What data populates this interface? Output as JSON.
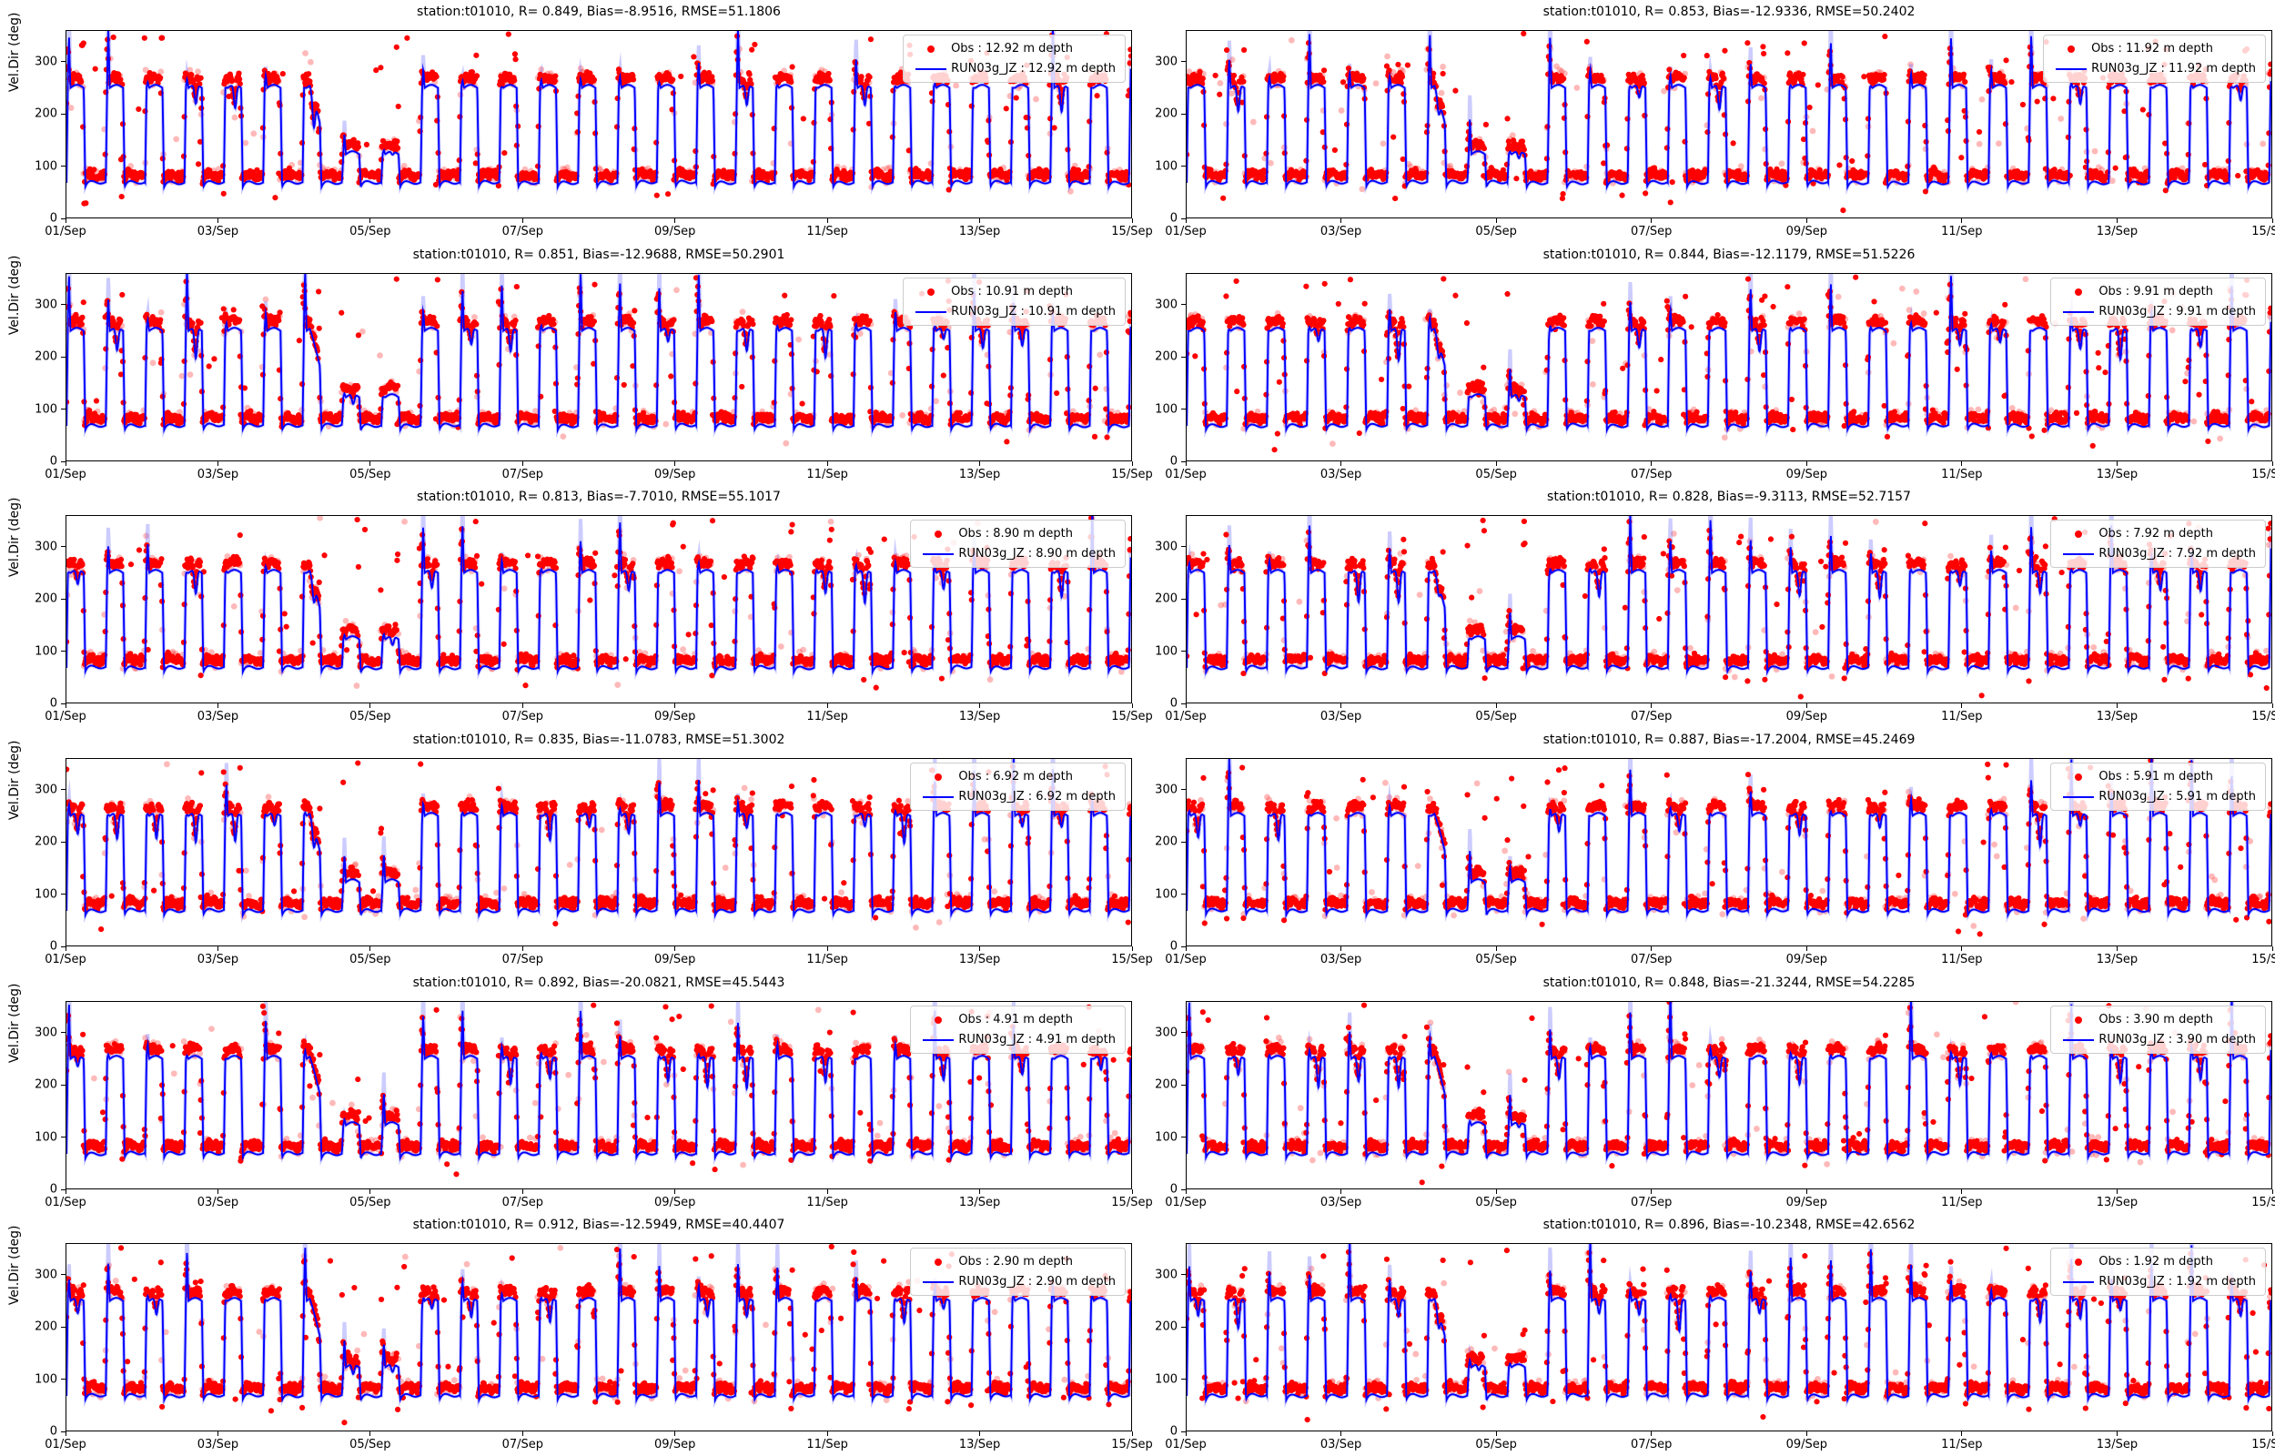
{
  "figure": {
    "station": "t01010",
    "ylabel": "Vel.Dir (deg)",
    "x_ticks": [
      "01/Sep",
      "03/Sep",
      "05/Sep",
      "07/Sep",
      "09/Sep",
      "11/Sep",
      "13/Sep",
      "15/Sep"
    ],
    "y_ticks": [
      "0",
      "100",
      "200",
      "300"
    ],
    "ylim": [
      0,
      360
    ],
    "x_range_days": 14,
    "grid": "off",
    "legend_position": "upper right",
    "colors": {
      "obs": "#ff0000",
      "model": "#0000ff",
      "model_halo": "rgba(110,110,255,0.35)",
      "spine": "#000000",
      "legend_border": "#cccccc"
    }
  },
  "chart_data": [
    {
      "type": "scatter+line",
      "title": "station:t01010, R= 0.849, Bias=-8.9516, RMSE=51.1806",
      "R": 0.849,
      "Bias": -8.9516,
      "RMSE": 51.1806,
      "depth_m": 12.92,
      "legend": {
        "obs": "Obs : 12.92 m depth",
        "model": "RUN03g_JZ : 12.92 m depth"
      },
      "series": [
        {
          "name": "Obs",
          "style": "red dots"
        },
        {
          "name": "RUN03g_JZ",
          "style": "blue line"
        }
      ],
      "pattern": {
        "kind": "semidiurnal square wave",
        "period_hours": 12.42,
        "model_low_deg": 67,
        "model_high_deg": 250,
        "obs_low_deg": 82,
        "obs_high_deg": 265,
        "spike_max_deg": 360,
        "weak_window_days": [
          3.2,
          4.7
        ],
        "x_start": "01/Sep",
        "x_end": "15/Sep"
      }
    },
    {
      "type": "scatter+line",
      "title": "station:t01010, R= 0.853, Bias=-12.9336, RMSE=50.2402",
      "R": 0.853,
      "Bias": -12.9336,
      "RMSE": 50.2402,
      "depth_m": 11.92,
      "legend": {
        "obs": "Obs : 11.92 m depth",
        "model": "RUN03g_JZ : 11.92 m depth"
      },
      "series": [
        {
          "name": "Obs",
          "style": "red dots"
        },
        {
          "name": "RUN03g_JZ",
          "style": "blue line"
        }
      ],
      "pattern": {
        "kind": "semidiurnal square wave",
        "period_hours": 12.42,
        "model_low_deg": 67,
        "model_high_deg": 250,
        "obs_low_deg": 82,
        "obs_high_deg": 265,
        "spike_max_deg": 360,
        "weak_window_days": [
          3.2,
          4.7
        ],
        "x_start": "01/Sep",
        "x_end": "15/Sep"
      }
    },
    {
      "type": "scatter+line",
      "title": "station:t01010, R= 0.851, Bias=-12.9688, RMSE=50.2901",
      "R": 0.851,
      "Bias": -12.9688,
      "RMSE": 50.2901,
      "depth_m": 10.91,
      "legend": {
        "obs": "Obs : 10.91 m depth",
        "model": "RUN03g_JZ : 10.91 m depth"
      },
      "series": [
        {
          "name": "Obs",
          "style": "red dots"
        },
        {
          "name": "RUN03g_JZ",
          "style": "blue line"
        }
      ],
      "pattern": {
        "kind": "semidiurnal square wave",
        "period_hours": 12.42,
        "model_low_deg": 67,
        "model_high_deg": 250,
        "obs_low_deg": 82,
        "obs_high_deg": 265,
        "spike_max_deg": 360,
        "weak_window_days": [
          3.2,
          4.7
        ],
        "x_start": "01/Sep",
        "x_end": "15/Sep"
      }
    },
    {
      "type": "scatter+line",
      "title": "station:t01010, R= 0.844, Bias=-12.1179, RMSE=51.5226",
      "R": 0.844,
      "Bias": -12.1179,
      "RMSE": 51.5226,
      "depth_m": 9.91,
      "legend": {
        "obs": "Obs : 9.91 m depth",
        "model": "RUN03g_JZ : 9.91 m depth"
      },
      "series": [
        {
          "name": "Obs",
          "style": "red dots"
        },
        {
          "name": "RUN03g_JZ",
          "style": "blue line"
        }
      ],
      "pattern": {
        "kind": "semidiurnal square wave",
        "period_hours": 12.42,
        "model_low_deg": 67,
        "model_high_deg": 250,
        "obs_low_deg": 82,
        "obs_high_deg": 265,
        "spike_max_deg": 360,
        "weak_window_days": [
          3.2,
          4.7
        ],
        "x_start": "01/Sep",
        "x_end": "15/Sep"
      }
    },
    {
      "type": "scatter+line",
      "title": "station:t01010, R= 0.813, Bias=-7.7010, RMSE=55.1017",
      "R": 0.813,
      "Bias": -7.701,
      "RMSE": 55.1017,
      "depth_m": 8.9,
      "legend": {
        "obs": "Obs : 8.90 m depth",
        "model": "RUN03g_JZ : 8.90 m depth"
      },
      "series": [
        {
          "name": "Obs",
          "style": "red dots"
        },
        {
          "name": "RUN03g_JZ",
          "style": "blue line"
        }
      ],
      "pattern": {
        "kind": "semidiurnal square wave",
        "period_hours": 12.42,
        "model_low_deg": 67,
        "model_high_deg": 250,
        "obs_low_deg": 82,
        "obs_high_deg": 265,
        "spike_max_deg": 360,
        "weak_window_days": [
          3.2,
          4.7
        ],
        "x_start": "01/Sep",
        "x_end": "15/Sep"
      }
    },
    {
      "type": "scatter+line",
      "title": "station:t01010, R= 0.828, Bias=-9.3113, RMSE=52.7157",
      "R": 0.828,
      "Bias": -9.3113,
      "RMSE": 52.7157,
      "depth_m": 7.92,
      "legend": {
        "obs": "Obs : 7.92 m depth",
        "model": "RUN03g_JZ : 7.92 m depth"
      },
      "series": [
        {
          "name": "Obs",
          "style": "red dots"
        },
        {
          "name": "RUN03g_JZ",
          "style": "blue line"
        }
      ],
      "pattern": {
        "kind": "semidiurnal square wave",
        "period_hours": 12.42,
        "model_low_deg": 67,
        "model_high_deg": 250,
        "obs_low_deg": 82,
        "obs_high_deg": 265,
        "spike_max_deg": 360,
        "weak_window_days": [
          3.2,
          4.7
        ],
        "x_start": "01/Sep",
        "x_end": "15/Sep"
      }
    },
    {
      "type": "scatter+line",
      "title": "station:t01010, R= 0.835, Bias=-11.0783, RMSE=51.3002",
      "R": 0.835,
      "Bias": -11.0783,
      "RMSE": 51.3002,
      "depth_m": 6.92,
      "legend": {
        "obs": "Obs : 6.92 m depth",
        "model": "RUN03g_JZ : 6.92 m depth"
      },
      "series": [
        {
          "name": "Obs",
          "style": "red dots"
        },
        {
          "name": "RUN03g_JZ",
          "style": "blue line"
        }
      ],
      "pattern": {
        "kind": "semidiurnal square wave",
        "period_hours": 12.42,
        "model_low_deg": 67,
        "model_high_deg": 250,
        "obs_low_deg": 82,
        "obs_high_deg": 265,
        "spike_max_deg": 360,
        "weak_window_days": [
          3.2,
          4.7
        ],
        "x_start": "01/Sep",
        "x_end": "15/Sep"
      }
    },
    {
      "type": "scatter+line",
      "title": "station:t01010, R= 0.887, Bias=-17.2004, RMSE=45.2469",
      "R": 0.887,
      "Bias": -17.2004,
      "RMSE": 45.2469,
      "depth_m": 5.91,
      "legend": {
        "obs": "Obs : 5.91 m depth",
        "model": "RUN03g_JZ : 5.91 m depth"
      },
      "series": [
        {
          "name": "Obs",
          "style": "red dots"
        },
        {
          "name": "RUN03g_JZ",
          "style": "blue line"
        }
      ],
      "pattern": {
        "kind": "semidiurnal square wave",
        "period_hours": 12.42,
        "model_low_deg": 67,
        "model_high_deg": 250,
        "obs_low_deg": 82,
        "obs_high_deg": 265,
        "spike_max_deg": 360,
        "weak_window_days": [
          3.2,
          4.7
        ],
        "x_start": "01/Sep",
        "x_end": "15/Sep"
      }
    },
    {
      "type": "scatter+line",
      "title": "station:t01010, R= 0.892, Bias=-20.0821, RMSE=45.5443",
      "R": 0.892,
      "Bias": -20.0821,
      "RMSE": 45.5443,
      "depth_m": 4.91,
      "legend": {
        "obs": "Obs : 4.91 m depth",
        "model": "RUN03g_JZ : 4.91 m depth"
      },
      "series": [
        {
          "name": "Obs",
          "style": "red dots"
        },
        {
          "name": "RUN03g_JZ",
          "style": "blue line"
        }
      ],
      "pattern": {
        "kind": "semidiurnal square wave",
        "period_hours": 12.42,
        "model_low_deg": 67,
        "model_high_deg": 250,
        "obs_low_deg": 82,
        "obs_high_deg": 265,
        "spike_max_deg": 360,
        "weak_window_days": [
          3.2,
          4.7
        ],
        "x_start": "01/Sep",
        "x_end": "15/Sep"
      }
    },
    {
      "type": "scatter+line",
      "title": "station:t01010, R= 0.848, Bias=-21.3244, RMSE=54.2285",
      "R": 0.848,
      "Bias": -21.3244,
      "RMSE": 54.2285,
      "depth_m": 3.9,
      "legend": {
        "obs": "Obs : 3.90 m depth",
        "model": "RUN03g_JZ : 3.90 m depth"
      },
      "series": [
        {
          "name": "Obs",
          "style": "red dots"
        },
        {
          "name": "RUN03g_JZ",
          "style": "blue line"
        }
      ],
      "pattern": {
        "kind": "semidiurnal square wave",
        "period_hours": 12.42,
        "model_low_deg": 67,
        "model_high_deg": 250,
        "obs_low_deg": 82,
        "obs_high_deg": 265,
        "spike_max_deg": 360,
        "weak_window_days": [
          3.2,
          4.7
        ],
        "x_start": "01/Sep",
        "x_end": "15/Sep"
      }
    },
    {
      "type": "scatter+line",
      "title": "station:t01010, R= 0.912, Bias=-12.5949, RMSE=40.4407",
      "R": 0.912,
      "Bias": -12.5949,
      "RMSE": 40.4407,
      "depth_m": 2.9,
      "legend": {
        "obs": "Obs : 2.90 m depth",
        "model": "RUN03g_JZ : 2.90 m depth"
      },
      "series": [
        {
          "name": "Obs",
          "style": "red dots"
        },
        {
          "name": "RUN03g_JZ",
          "style": "blue line"
        }
      ],
      "pattern": {
        "kind": "semidiurnal square wave",
        "period_hours": 12.42,
        "model_low_deg": 67,
        "model_high_deg": 250,
        "obs_low_deg": 82,
        "obs_high_deg": 265,
        "spike_max_deg": 360,
        "weak_window_days": [
          3.2,
          4.7
        ],
        "x_start": "01/Sep",
        "x_end": "15/Sep"
      }
    },
    {
      "type": "scatter+line",
      "title": "station:t01010, R= 0.896, Bias=-10.2348, RMSE=42.6562",
      "R": 0.896,
      "Bias": -10.2348,
      "RMSE": 42.6562,
      "depth_m": 1.92,
      "legend": {
        "obs": "Obs : 1.92 m depth",
        "model": "RUN03g_JZ : 1.92 m depth"
      },
      "series": [
        {
          "name": "Obs",
          "style": "red dots"
        },
        {
          "name": "RUN03g_JZ",
          "style": "blue line"
        }
      ],
      "pattern": {
        "kind": "semidiurnal square wave",
        "period_hours": 12.42,
        "model_low_deg": 67,
        "model_high_deg": 250,
        "obs_low_deg": 82,
        "obs_high_deg": 265,
        "spike_max_deg": 360,
        "weak_window_days": [
          3.2,
          4.7
        ],
        "x_start": "01/Sep",
        "x_end": "15/Sep"
      }
    }
  ]
}
